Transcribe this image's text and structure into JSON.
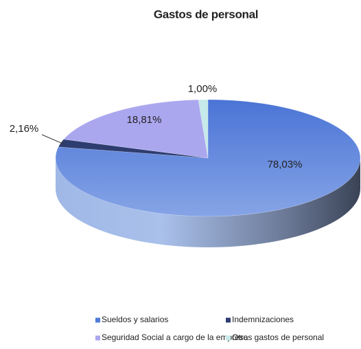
{
  "chart_data": {
    "type": "pie",
    "title": "Gastos de personal",
    "categories": [
      "Sueldos y salarios",
      "Indemnizaciones",
      "Seguridad Social a cargo de la empresa",
      "Otros gastos de personal"
    ],
    "values": [
      78.03,
      2.16,
      18.81,
      1.0
    ],
    "value_labels": [
      "78,03%",
      "2,16%",
      "18,81%",
      "1,00%"
    ],
    "colors": [
      "#4f7bd8",
      "#2e3d70",
      "#aba7ef",
      "#c6e9e9"
    ],
    "legend": "bottom"
  }
}
